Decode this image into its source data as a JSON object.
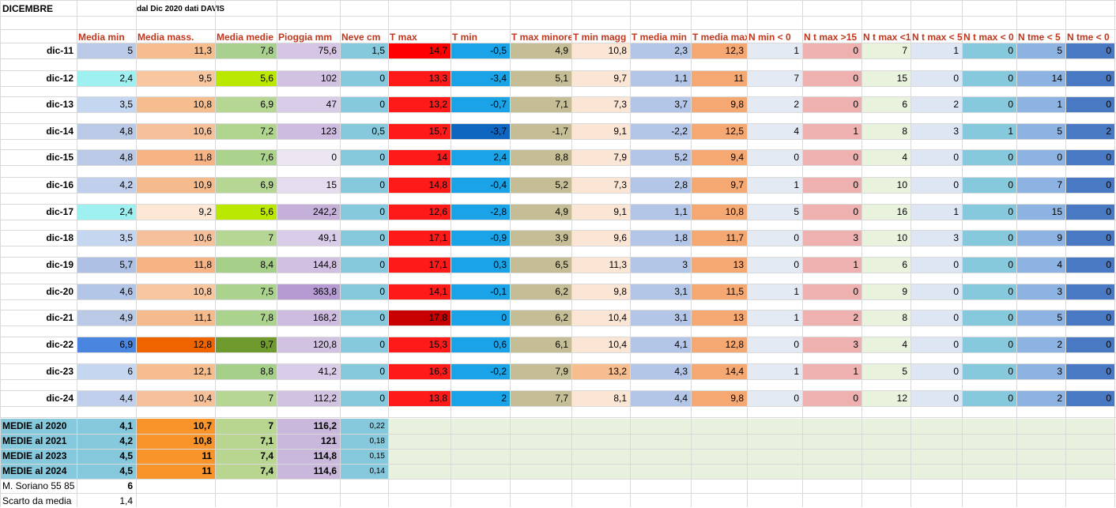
{
  "title": "DICEMBRE",
  "subtitle": "dal Dic 2020 dati DAVIS",
  "headers": [
    "Media min",
    "Media mass.",
    "Media medie",
    "Pioggia mm",
    "Neve cm",
    "T max",
    "T min",
    "T max minore",
    "T min magg",
    "T media min",
    "T media max",
    "N min < 0",
    "N t max >15",
    "N t max <1",
    "N t max < 5",
    "N t max < 0",
    "N tme < 5",
    "N tme < 0"
  ],
  "rows": [
    {
      "label": "dic-11",
      "values": [
        "5",
        "11,3",
        "7,8",
        "75,6",
        "1,5",
        "14,7",
        "-0,5",
        "4,9",
        "10,8",
        "2,3",
        "12,3",
        "1",
        "0",
        "7",
        "1",
        "0",
        "5",
        "0"
      ]
    },
    {
      "label": "dic-12",
      "values": [
        "2,4",
        "9,5",
        "5,6",
        "102",
        "0",
        "13,3",
        "-3,4",
        "5,1",
        "9,7",
        "1,1",
        "11",
        "7",
        "0",
        "15",
        "0",
        "0",
        "14",
        "0"
      ]
    },
    {
      "label": "dic-13",
      "values": [
        "3,5",
        "10,8",
        "6,9",
        "47",
        "0",
        "13,2",
        "-0,7",
        "7,1",
        "7,3",
        "3,7",
        "9,8",
        "2",
        "0",
        "6",
        "2",
        "0",
        "1",
        "0"
      ]
    },
    {
      "label": "dic-14",
      "values": [
        "4,8",
        "10,6",
        "7,2",
        "123",
        "0,5",
        "15,7",
        "-3,7",
        "-1,7",
        "9,1",
        "-2,2",
        "12,5",
        "4",
        "1",
        "8",
        "3",
        "1",
        "5",
        "2"
      ]
    },
    {
      "label": "dic-15",
      "values": [
        "4,8",
        "11,8",
        "7,6",
        "0",
        "0",
        "14",
        "2,4",
        "8,8",
        "7,9",
        "5,2",
        "9,4",
        "0",
        "0",
        "4",
        "0",
        "0",
        "0",
        "0"
      ]
    },
    {
      "label": "dic-16",
      "values": [
        "4,2",
        "10,9",
        "6,9",
        "15",
        "0",
        "14,8",
        "-0,4",
        "5,2",
        "7,3",
        "2,8",
        "9,7",
        "1",
        "0",
        "10",
        "0",
        "0",
        "7",
        "0"
      ]
    },
    {
      "label": "dic-17",
      "values": [
        "2,4",
        "9,2",
        "5,6",
        "242,2",
        "0",
        "12,6",
        "-2,8",
        "4,9",
        "9,1",
        "1,1",
        "10,8",
        "5",
        "0",
        "16",
        "1",
        "0",
        "15",
        "0"
      ]
    },
    {
      "label": "dic-18",
      "values": [
        "3,5",
        "10,6",
        "7",
        "49,1",
        "0",
        "17,1",
        "-0,9",
        "3,9",
        "9,6",
        "1,8",
        "11,7",
        "0",
        "3",
        "10",
        "3",
        "0",
        "9",
        "0"
      ]
    },
    {
      "label": "dic-19",
      "values": [
        "5,7",
        "11,8",
        "8,4",
        "144,8",
        "0",
        "17,1",
        "0,3",
        "6,5",
        "11,3",
        "3",
        "13",
        "0",
        "1",
        "6",
        "0",
        "0",
        "4",
        "0"
      ]
    },
    {
      "label": "dic-20",
      "values": [
        "4,6",
        "10,8",
        "7,5",
        "363,8",
        "0",
        "14,1",
        "-0,1",
        "6,2",
        "9,8",
        "3,1",
        "11,5",
        "1",
        "0",
        "9",
        "0",
        "0",
        "3",
        "0"
      ]
    },
    {
      "label": "dic-21",
      "values": [
        "4,9",
        "11,1",
        "7,8",
        "168,2",
        "0",
        "17,8",
        "0",
        "6,2",
        "10,4",
        "3,1",
        "13",
        "1",
        "2",
        "8",
        "0",
        "0",
        "5",
        "0"
      ]
    },
    {
      "label": "dic-22",
      "values": [
        "6,9",
        "12,8",
        "9,7",
        "120,8",
        "0",
        "15,3",
        "0,6",
        "6,1",
        "10,4",
        "4,1",
        "12,8",
        "0",
        "3",
        "4",
        "0",
        "0",
        "2",
        "0"
      ]
    },
    {
      "label": "dic-23",
      "values": [
        "6",
        "12,1",
        "8,8",
        "41,2",
        "0",
        "16,3",
        "-0,2",
        "7,9",
        "13,2",
        "4,3",
        "14,4",
        "1",
        "1",
        "5",
        "0",
        "0",
        "3",
        "0"
      ]
    },
    {
      "label": "dic-24",
      "values": [
        "4,4",
        "10,4",
        "7",
        "112,2",
        "0",
        "13,8",
        "2",
        "7,7",
        "8,1",
        "4,4",
        "9,8",
        "0",
        "0",
        "12",
        "0",
        "0",
        "2",
        "0"
      ]
    }
  ],
  "medie": [
    {
      "label": "MEDIE al 2020",
      "values": [
        "4,1",
        "10,7",
        "7",
        "116,2",
        "0,22"
      ]
    },
    {
      "label": "MEDIE al 2021",
      "values": [
        "4,2",
        "10,8",
        "7,1",
        "121",
        "0,18"
      ]
    },
    {
      "label": "MEDIE al 2023",
      "values": [
        "4,5",
        "11",
        "7,4",
        "114,8",
        "0,15"
      ]
    },
    {
      "label": "MEDIE al 2024",
      "values": [
        "4,5",
        "11",
        "7,4",
        "114,6",
        "0,14"
      ]
    }
  ],
  "footer": [
    {
      "label": "M. Soriano 55 85",
      "value": "6"
    },
    {
      "label": "Scarto da media",
      "value": "1,4"
    }
  ],
  "colors": {
    "header_text": "#c0361c",
    "medie_bg": "#e8f1de",
    "medie_col0": "#86c9dd",
    "medie_col1": "#f8942a",
    "medie_col2": "#b8d690",
    "medie_col3": "#c9b8dc",
    "medie_col4": "#86c9dd"
  },
  "cell_colors": [
    [
      "#b9c9e6",
      "#f6bd8e",
      "#a9d08e",
      "#d5c4e4",
      "#86c9dd",
      "#ff0000",
      "#1aa3e6",
      "#c5bd96",
      "#fbe6d6",
      "#b4c6e7",
      "#f6a873",
      "#e3eaf4",
      "#efb0b0",
      "#e8f2dd",
      "#dde6f2",
      "#86c9dd",
      "#8db3e2",
      "#4a79c4"
    ],
    [
      "#9ff0f0",
      "#f8c69f",
      "#bbe800",
      "#d2c2e2",
      "#86c9dd",
      "#ff1a1a",
      "#1aa3e6",
      "#c5bd96",
      "#fbe6d6",
      "#b4c6e7",
      "#f6a873",
      "#e3eaf4",
      "#efb0b0",
      "#e8f2dd",
      "#dde6f2",
      "#86c9dd",
      "#8db3e2",
      "#4a79c4"
    ],
    [
      "#c5d6f0",
      "#f6bd8e",
      "#b5d793",
      "#d9cce8",
      "#86c9dd",
      "#ff1a1a",
      "#1aa3e6",
      "#c5bd96",
      "#fbe6d6",
      "#b4c6e7",
      "#f6a873",
      "#e3eaf4",
      "#efb0b0",
      "#e8f2dd",
      "#dde6f2",
      "#86c9dd",
      "#8db3e2",
      "#4a79c4"
    ],
    [
      "#b9c9e6",
      "#f6c09a",
      "#b0d58f",
      "#cdbbe0",
      "#86c9dd",
      "#ff1a1a",
      "#0f66c0",
      "#c5bd96",
      "#fbe6d6",
      "#b4c6e7",
      "#f6a873",
      "#e3eaf4",
      "#efb0b0",
      "#e8f2dd",
      "#dde6f2",
      "#86c9dd",
      "#8db3e2",
      "#4a79c4"
    ],
    [
      "#b9c9e6",
      "#f6b484",
      "#acd38d",
      "#ece6f3",
      "#86c9dd",
      "#ff1a1a",
      "#1aa3e6",
      "#c5bd96",
      "#fbe6d6",
      "#b4c6e7",
      "#f6a873",
      "#e3eaf4",
      "#efb0b0",
      "#e8f2dd",
      "#dde6f2",
      "#86c9dd",
      "#8db3e2",
      "#4a79c4"
    ],
    [
      "#c0cfec",
      "#f6bb8c",
      "#b5d793",
      "#e6dcef",
      "#86c9dd",
      "#ff1a1a",
      "#1aa3e6",
      "#c5bd96",
      "#fbe6d6",
      "#b4c6e7",
      "#f6a873",
      "#e3eaf4",
      "#efb0b0",
      "#e8f2dd",
      "#dde6f2",
      "#86c9dd",
      "#8db3e2",
      "#4a79c4"
    ],
    [
      "#9ff0f0",
      "#fde8d6",
      "#bbe800",
      "#c5b0da",
      "#86c9dd",
      "#ff1a1a",
      "#1aa3e6",
      "#c5bd96",
      "#fbe6d6",
      "#b4c6e7",
      "#f6a873",
      "#e3eaf4",
      "#efb0b0",
      "#e8f2dd",
      "#dde6f2",
      "#86c9dd",
      "#8db3e2",
      "#4a79c4"
    ],
    [
      "#c5d6f0",
      "#f6c09a",
      "#b5d793",
      "#d9cce8",
      "#86c9dd",
      "#ff1a1a",
      "#1aa3e6",
      "#c5bd96",
      "#fbe6d6",
      "#b4c6e7",
      "#f6a873",
      "#e3eaf4",
      "#efb0b0",
      "#e8f2dd",
      "#dde6f2",
      "#86c9dd",
      "#8db3e2",
      "#4a79c4"
    ],
    [
      "#aec1e4",
      "#f6b484",
      "#a6d089",
      "#d0bfe1",
      "#86c9dd",
      "#ff1a1a",
      "#1aa3e6",
      "#c5bd96",
      "#fbe6d6",
      "#b4c6e7",
      "#f6a873",
      "#e3eaf4",
      "#efb0b0",
      "#e8f2dd",
      "#dde6f2",
      "#86c9dd",
      "#8db3e2",
      "#4a79c4"
    ],
    [
      "#b4c6e7",
      "#f8c69f",
      "#acd38d",
      "#b59bd1",
      "#86c9dd",
      "#ff1a1a",
      "#1aa3e6",
      "#c5bd96",
      "#fbe6d6",
      "#b4c6e7",
      "#f6a873",
      "#e3eaf4",
      "#efb0b0",
      "#e8f2dd",
      "#dde6f2",
      "#86c9dd",
      "#8db3e2",
      "#4a79c4"
    ],
    [
      "#b9c9e6",
      "#f6bb8c",
      "#acd38d",
      "#cdbbe0",
      "#86c9dd",
      "#c80000",
      "#1aa3e6",
      "#c5bd96",
      "#fbe6d6",
      "#b4c6e7",
      "#f6a873",
      "#e3eaf4",
      "#efb0b0",
      "#e8f2dd",
      "#dde6f2",
      "#86c9dd",
      "#8db3e2",
      "#4a79c4"
    ],
    [
      "#4a86e0",
      "#f06400",
      "#6e9a2e",
      "#d2c2e2",
      "#86c9dd",
      "#ff1a1a",
      "#1aa3e6",
      "#c5bd96",
      "#fbe6d6",
      "#b4c6e7",
      "#f6a873",
      "#e3eaf4",
      "#efb0b0",
      "#e8f2dd",
      "#dde6f2",
      "#86c9dd",
      "#8db3e2",
      "#4a79c4"
    ],
    [
      "#c5d6f0",
      "#f6bd8e",
      "#a6d089",
      "#d9cce8",
      "#86c9dd",
      "#ff1a1a",
      "#1aa3e6",
      "#c5bd96",
      "#f6bd8e",
      "#b4c6e7",
      "#f6a873",
      "#e3eaf4",
      "#efb0b0",
      "#e8f2dd",
      "#dde6f2",
      "#86c9dd",
      "#8db3e2",
      "#4a79c4"
    ],
    [
      "#bfcfec",
      "#f6c09a",
      "#b5d793",
      "#d2c2e2",
      "#86c9dd",
      "#ff1a1a",
      "#1aa3e6",
      "#c5bd96",
      "#fbe6d6",
      "#b4c6e7",
      "#f6a873",
      "#e3eaf4",
      "#efb0b0",
      "#e8f2dd",
      "#dde6f2",
      "#86c9dd",
      "#8db3e2",
      "#4a79c4"
    ]
  ]
}
